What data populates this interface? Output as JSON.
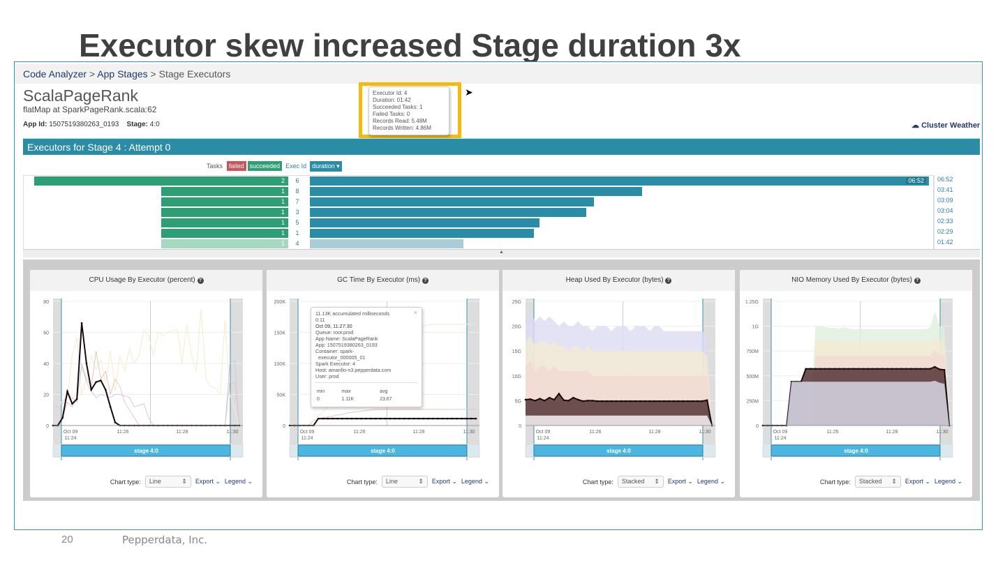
{
  "slide": {
    "title": "Executor skew increased Stage duration 3x",
    "page": "20",
    "company": "Pepperdata, Inc."
  },
  "breadcrumb": {
    "items": [
      "Code Analyzer",
      "App Stages",
      "Stage Executors"
    ],
    "sep": ">"
  },
  "app": {
    "title": "ScalaPageRank",
    "subtitle": "flatMap at SparkPageRank.scala:62",
    "app_id_label": "App Id:",
    "app_id": "1507519380263_0193",
    "stage_label": "Stage:",
    "stage": "4:0",
    "cluster_weather": "Cluster Weather"
  },
  "executors": {
    "header": "Executors for Stage 4 : Attempt 0",
    "tasks_label": "Tasks",
    "failed": "failed",
    "succeeded": "succeeded",
    "exec_id": "Exec Id",
    "duration": "duration ▾",
    "colors": {
      "failed": "#c9545b",
      "succeeded": "#2e9e74",
      "duration": "#2b8ca6"
    },
    "rows": [
      {
        "succeeded": 2,
        "id": "6",
        "duration": "06:52",
        "seconds": 412
      },
      {
        "succeeded": 1,
        "id": "8",
        "duration": "03:41",
        "seconds": 221
      },
      {
        "succeeded": 1,
        "id": "7",
        "duration": "03:09",
        "seconds": 189
      },
      {
        "succeeded": 1,
        "id": "3",
        "duration": "03:04",
        "seconds": 184
      },
      {
        "succeeded": 1,
        "id": "5",
        "duration": "02:33",
        "seconds": 153
      },
      {
        "succeeded": 1,
        "id": "1",
        "duration": "02:29",
        "seconds": 149
      },
      {
        "succeeded": 1,
        "id": "4",
        "duration": "01:42",
        "seconds": 102,
        "faded": true
      }
    ]
  },
  "tooltip_executor": [
    "Executor Id: 4",
    "Duration: 01:42",
    "Succeeded Tasks: 1",
    "Failed Tasks: 0",
    "Records Read: 5.48M",
    "Records Written: 4.86M"
  ],
  "tooltip_gc": {
    "lines": [
      "11.13K accumulated milliseconds",
      "0:11",
      "Oct 09, 11:27:30",
      "Queue: root.prod",
      "App Name: ScalaPageRank",
      "App: 1507519380263_0193",
      "Container: spark-",
      "  executor_000005_01",
      "Spark Executor: 4",
      "Host: amarillo-n3.pepperdata.com",
      "User: prod"
    ],
    "close": "×",
    "stats_headers": [
      "min",
      "max",
      "avg"
    ],
    "stats": [
      "0",
      "1.11K",
      "23.67"
    ]
  },
  "panel_common": {
    "chart_type_label": "Chart type:",
    "export": "Export ⌄",
    "legend": "Legend ⌄",
    "stage_bar": "stage 4:0",
    "xticks": [
      "Oct 09",
      "11:24",
      "11:26",
      "11:28",
      "11:30"
    ]
  },
  "chart_data": [
    {
      "type": "line",
      "title": "CPU Usage By Executor (percent)",
      "chart_type": "Line",
      "ylim": [
        0,
        80
      ],
      "yticks": [
        "0",
        "20",
        "40",
        "60",
        "80"
      ],
      "ytick_values": [
        0,
        20,
        40,
        60,
        80
      ],
      "series": [
        {
          "color": "#f3edc8",
          "values": [
            12,
            12,
            16,
            18,
            45,
            57,
            20,
            30,
            45,
            36,
            42,
            28,
            48,
            22,
            45,
            35,
            50,
            40,
            45,
            62,
            58,
            45,
            60,
            58,
            60,
            61,
            62,
            40,
            65,
            45,
            35,
            75,
            30,
            25,
            24,
            20,
            68,
            20,
            10,
            0
          ]
        },
        {
          "color": "#e8c6c0",
          "values": [
            12,
            12,
            14,
            20,
            18,
            15,
            40,
            30,
            25,
            48,
            30,
            35,
            20,
            30,
            25,
            15,
            10,
            5,
            0,
            0,
            0,
            0,
            0,
            0,
            0,
            0,
            0,
            0,
            0,
            0,
            0,
            0,
            0,
            0,
            0,
            0,
            0,
            28,
            27,
            0
          ]
        },
        {
          "color": "#c9cde6",
          "values": [
            0,
            0,
            5,
            15,
            12,
            18,
            38,
            28,
            22,
            18,
            20,
            19,
            18,
            20,
            20,
            19,
            18,
            12,
            13,
            14,
            5,
            0,
            0,
            0,
            0,
            0,
            0,
            0,
            0,
            0,
            0,
            0,
            0,
            0,
            0,
            0,
            0,
            40,
            42,
            0
          ]
        },
        {
          "color": "#2a1416",
          "dark": true,
          "values": [
            0,
            0,
            5,
            22,
            14,
            17,
            66,
            40,
            23,
            28,
            29,
            23,
            12,
            2,
            0,
            0,
            0,
            0,
            0,
            0,
            0,
            0,
            0,
            0,
            0,
            0,
            0,
            0,
            0,
            0,
            0,
            0,
            0,
            0,
            0,
            0,
            0,
            0,
            0,
            0
          ]
        }
      ]
    },
    {
      "type": "line",
      "title": "GC Time By Executor (ms)",
      "chart_type": "Line",
      "ylim": [
        0,
        200000
      ],
      "yticks": [
        "0",
        "50K",
        "100K",
        "150K",
        "200K"
      ],
      "ytick_values": [
        0,
        50000,
        100000,
        150000,
        200000
      ],
      "series": [
        {
          "color": "#f3edc8",
          "values": [
            0,
            0,
            0,
            0,
            0,
            8000,
            15000,
            22000,
            30000,
            38000,
            46000,
            55000,
            63000,
            72000,
            80000,
            88000,
            95000,
            102000,
            110000,
            118000,
            125000,
            130000,
            135000,
            140000,
            145000,
            150000,
            155000,
            158000,
            160000,
            162000,
            163000,
            163000,
            163000,
            163000,
            163000,
            163000,
            163000,
            163000,
            163000,
            163000
          ]
        },
        {
          "color": "#e8c6c0",
          "values": [
            0,
            0,
            0,
            0,
            0,
            8000,
            10000,
            12000,
            14000,
            15000,
            17000,
            18000,
            20000,
            21000,
            22000,
            23000,
            24000,
            25000,
            26000,
            26000,
            26000,
            26000,
            26000,
            26000,
            26000,
            26000,
            26000,
            26000,
            26000,
            26000,
            26000,
            26000,
            26000,
            26000,
            26000,
            26000,
            26000,
            26000,
            26000,
            26000
          ]
        },
        {
          "color": "#2a1416",
          "dark": true,
          "values": [
            0,
            0,
            0,
            0,
            0,
            0,
            11130,
            11130,
            11130,
            11130,
            11130,
            11130,
            11130,
            11130,
            11130,
            11130,
            11130,
            11130,
            11130,
            11130,
            11130,
            11130,
            11130,
            11130,
            11130,
            11130,
            11130,
            11130,
            11130,
            11130,
            11130,
            11130,
            11130,
            11130,
            11130,
            11130,
            11130,
            11130,
            11130,
            11130
          ]
        }
      ]
    },
    {
      "type": "area",
      "title": "Heap Used By Executor (bytes)",
      "chart_type": "Stacked",
      "ylim": [
        0,
        25
      ],
      "yticks": [
        "0",
        "5G",
        "10G",
        "15G",
        "20G",
        "25G"
      ],
      "ytick_values": [
        0,
        5,
        10,
        15,
        20,
        25
      ],
      "unit": "G",
      "series": [
        {
          "color": "#dcdcf2",
          "values": [
            22,
            23,
            21,
            22,
            21,
            22,
            21,
            20,
            21,
            20,
            20,
            21,
            20,
            20,
            19,
            20,
            20,
            20,
            19,
            20,
            20,
            20,
            19,
            20,
            20,
            20,
            19,
            20,
            20,
            19,
            19,
            19,
            19,
            19,
            19,
            19,
            19,
            19,
            18,
            0
          ]
        },
        {
          "color": "#f4ead2",
          "values": [
            17,
            18,
            16,
            17,
            17,
            16,
            17,
            16,
            16,
            15,
            16,
            16,
            15,
            16,
            15,
            15,
            15,
            15,
            15,
            15,
            15,
            15,
            15,
            15,
            15,
            15,
            15,
            15,
            15,
            15,
            15,
            15,
            15,
            15,
            15,
            15,
            15,
            15,
            14,
            0
          ]
        },
        {
          "color": "#f2d9d3",
          "values": [
            12,
            13,
            11,
            12,
            12,
            11,
            12,
            11,
            11,
            11,
            11,
            11,
            11,
            11,
            10,
            10,
            10,
            10,
            10,
            10,
            10,
            10,
            10,
            10,
            10,
            10,
            10,
            10,
            10,
            10,
            10,
            10,
            10,
            10,
            10,
            10,
            10,
            10,
            10,
            0
          ]
        },
        {
          "color": "#5e3e3f",
          "dark": true,
          "values": [
            5.2,
            5.3,
            5,
            5.4,
            5,
            5.6,
            5.2,
            6.4,
            5.1,
            5,
            5.6,
            5.2,
            4.9,
            5,
            5,
            4.9,
            4.9,
            4.9,
            4.9,
            4.9,
            4.9,
            4.9,
            4.9,
            4.9,
            4.9,
            4.9,
            4.9,
            4.9,
            4.9,
            4.9,
            4.9,
            4.9,
            4.9,
            4.9,
            4.9,
            4.9,
            4.9,
            4.9,
            5.1,
            0
          ]
        },
        {
          "color": "#ffffff",
          "fill_only": true,
          "values": [
            2,
            2,
            2,
            2,
            2,
            2,
            2,
            2,
            2,
            2,
            2,
            2,
            2,
            2,
            2,
            2,
            2,
            2,
            2,
            2,
            2,
            2,
            2,
            2,
            2,
            2,
            2,
            2,
            2,
            2,
            2,
            2,
            2,
            2,
            2,
            2,
            2,
            2,
            2,
            0
          ]
        }
      ]
    },
    {
      "type": "area",
      "title": "NIO Memory Used By Executor (bytes)",
      "chart_type": "Stacked",
      "ylim": [
        0,
        1250
      ],
      "yticks": [
        "0",
        "250M",
        "500M",
        "750M",
        "1G",
        "1.25G"
      ],
      "ytick_values": [
        0,
        250,
        500,
        750,
        1000,
        1250
      ],
      "unit": "M",
      "series": [
        {
          "color": "#e0efdc",
          "values": [
            0,
            0,
            0,
            0,
            0,
            0,
            0,
            0,
            0,
            0,
            0,
            1000,
            1000,
            990,
            980,
            985,
            975,
            990,
            975,
            970,
            970,
            970,
            970,
            970,
            970,
            970,
            970,
            970,
            970,
            970,
            970,
            970,
            970,
            970,
            970,
            980,
            1150,
            1000,
            990,
            0
          ]
        },
        {
          "color": "#f4ead2",
          "values": [
            0,
            0,
            0,
            0,
            0,
            0,
            0,
            0,
            0,
            0,
            0,
            860,
            860,
            850,
            850,
            850,
            840,
            840,
            840,
            840,
            840,
            840,
            840,
            840,
            840,
            840,
            840,
            840,
            840,
            840,
            840,
            840,
            840,
            840,
            840,
            840,
            900,
            860,
            850,
            0
          ]
        },
        {
          "color": "#f2d9d3",
          "values": [
            0,
            0,
            0,
            0,
            0,
            0,
            0,
            0,
            0,
            0,
            0,
            700,
            700,
            700,
            700,
            700,
            700,
            700,
            700,
            700,
            700,
            700,
            700,
            700,
            700,
            700,
            700,
            700,
            700,
            700,
            700,
            700,
            700,
            700,
            700,
            700,
            760,
            720,
            700,
            0
          ]
        },
        {
          "color": "#5e3e3f",
          "dark": true,
          "values": [
            0,
            0,
            0,
            0,
            0,
            0,
            440,
            440,
            440,
            570,
            570,
            570,
            570,
            570,
            570,
            570,
            570,
            570,
            570,
            570,
            570,
            570,
            570,
            570,
            570,
            570,
            570,
            570,
            570,
            570,
            570,
            570,
            570,
            570,
            570,
            570,
            590,
            565,
            560,
            0
          ]
        },
        {
          "color": "#dfe0f0",
          "fill_only": true,
          "values": [
            0,
            0,
            0,
            0,
            0,
            0,
            440,
            440,
            440,
            440,
            440,
            440,
            440,
            440,
            440,
            440,
            440,
            440,
            440,
            440,
            440,
            440,
            440,
            440,
            440,
            440,
            440,
            440,
            440,
            440,
            440,
            440,
            440,
            440,
            440,
            440,
            450,
            430,
            420,
            0
          ]
        }
      ]
    }
  ]
}
